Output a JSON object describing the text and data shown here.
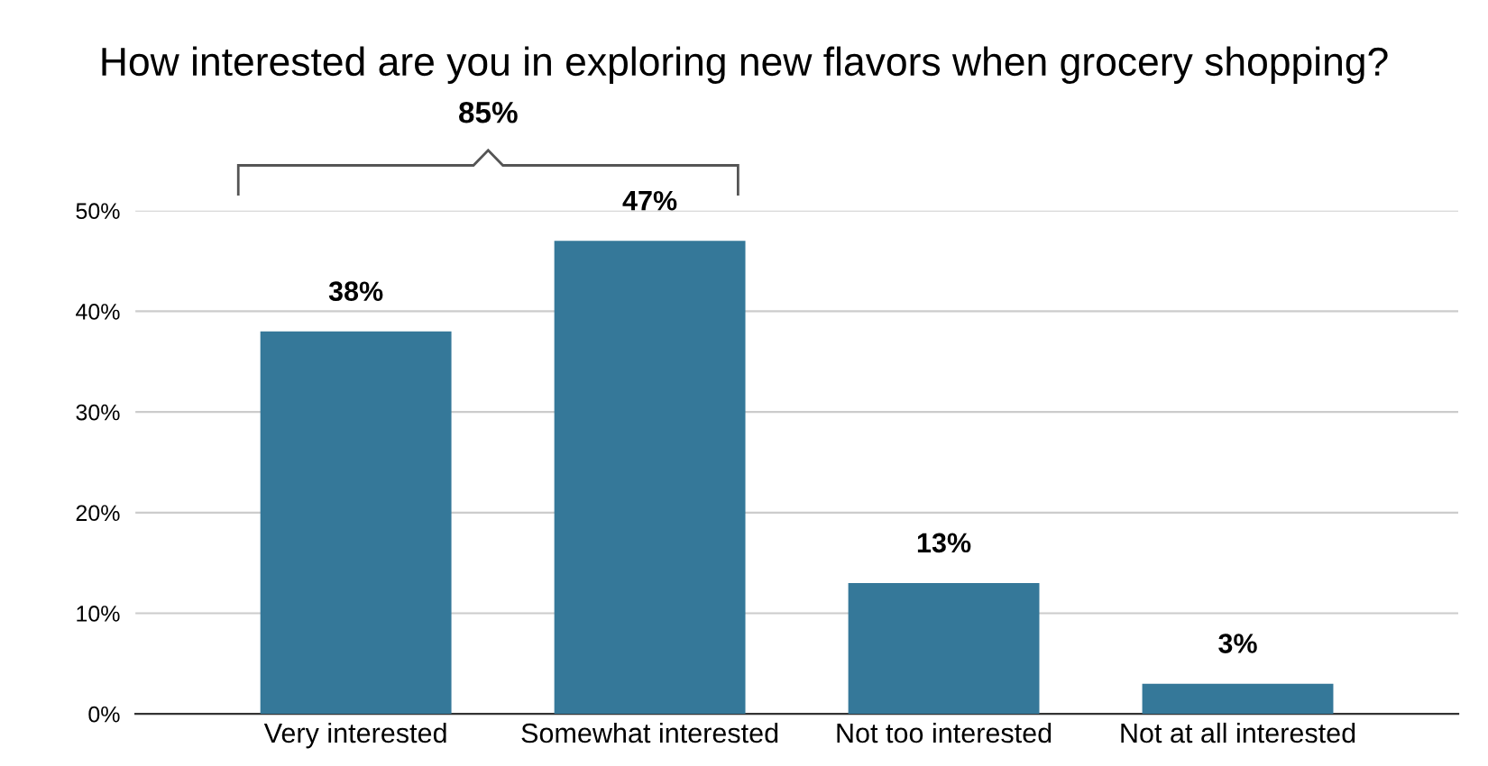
{
  "chart_data": {
    "type": "bar",
    "title": "How interested are you in exploring new flavors when grocery shopping?",
    "categories": [
      "Very interested",
      "Somewhat interested",
      "Not too interested",
      "Not at all interested"
    ],
    "values": [
      38,
      47,
      13,
      3
    ],
    "color": "#357899",
    "data_labels": true,
    "value_labels": [
      "38%",
      "47%",
      "13%",
      "3%"
    ],
    "ylim": [
      0,
      50
    ],
    "yticks": [
      {
        "value": 0,
        "label": "0%"
      },
      {
        "value": 10,
        "label": "10%"
      },
      {
        "value": 20,
        "label": "20%"
      },
      {
        "value": 30,
        "label": "30%"
      },
      {
        "value": 40,
        "label": "40%"
      },
      {
        "value": 50,
        "label": "50%"
      }
    ],
    "grid": "y",
    "annotations": [
      "85%"
    ]
  }
}
